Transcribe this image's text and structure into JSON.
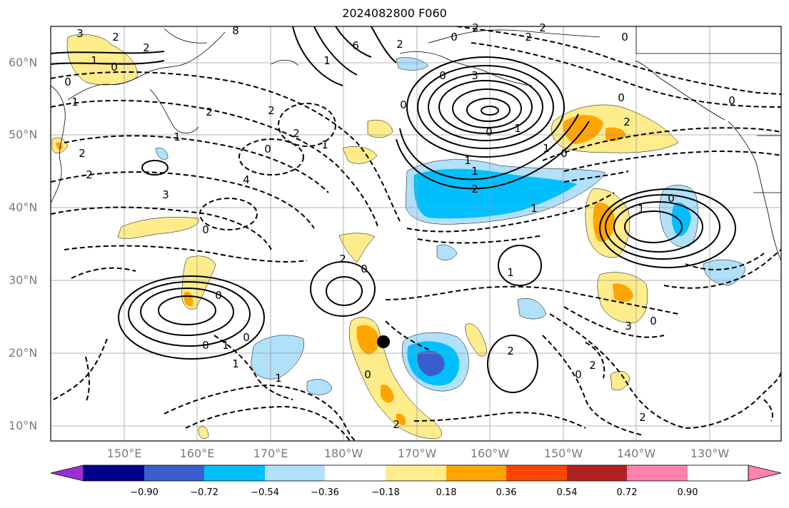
{
  "title": "2024082800 F060",
  "lat_labels": [
    "60°N",
    "50°N",
    "40°N",
    "30°N",
    "20°N",
    "10°N"
  ],
  "lon_labels": [
    "150°E",
    "160°E",
    "170°E",
    "180°W",
    "170°W",
    "160°W",
    "150°W",
    "140°W",
    "130°W"
  ],
  "colorbar": {
    "ticks": [
      "−0.90",
      "−0.72",
      "−0.54",
      "−0.36",
      "−0.18",
      "0.18",
      "0.36",
      "0.54",
      "0.72",
      "0.90"
    ],
    "colors": [
      "#9b30d0",
      "#00008b",
      "#3a5fcd",
      "#00bfff",
      "#b0e0fa",
      "#ffffff",
      "#ffec8b",
      "#ffa500",
      "#ff4500",
      "#b22222",
      "#ff82ab"
    ]
  },
  "contour_labels": [
    "3",
    "2",
    "2",
    "1",
    "0",
    "0",
    "1",
    "2",
    "2",
    "3",
    "2",
    "1",
    "2",
    "0",
    "2",
    "1",
    "4",
    "8",
    "6",
    "1",
    "3",
    "0",
    "1",
    "2",
    "2",
    "0",
    "0",
    "2",
    "2",
    "0",
    "0",
    "1",
    "1",
    "2",
    "0",
    "2",
    "1",
    "0",
    "0",
    "1",
    "0",
    "0",
    "0",
    "1",
    "0",
    "1",
    "1",
    "2",
    "0",
    "0",
    "2",
    "1",
    "2",
    "0",
    "2",
    "3",
    "0",
    "2",
    "1",
    "0"
  ],
  "marker": "storm-position"
}
